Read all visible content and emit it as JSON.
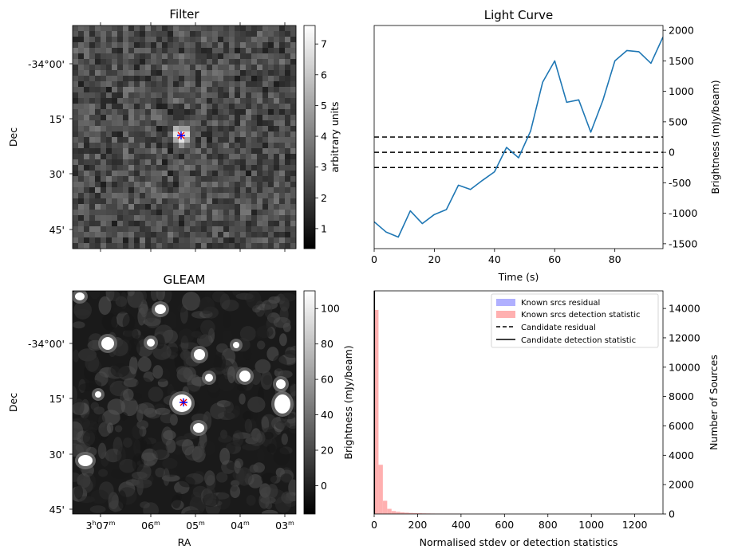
{
  "chart_data": [
    {
      "type": "heatmap",
      "title": "Filter",
      "ylabel": "Dec",
      "xlabel": "",
      "yticks": [
        "-34°00'",
        "15'",
        "30'",
        "45'"
      ],
      "colorbar": {
        "label": "arbitrary units",
        "range": [
          0.35,
          7.6
        ],
        "ticks": [
          "1",
          "2",
          "3",
          "4",
          "5",
          "6",
          "7"
        ]
      },
      "colormap": "gray",
      "markers": [
        {
          "symbol": "x",
          "color": "#ff0000"
        },
        {
          "symbol": "+",
          "color": "#0000ff"
        }
      ]
    },
    {
      "type": "line",
      "title": "Light Curve",
      "xlabel": "Time (s)",
      "ylabel": "Brightness (mJy/beam)",
      "xlim": [
        0,
        96
      ],
      "ylim": [
        -1580,
        2080
      ],
      "xticks": [
        "0",
        "20",
        "40",
        "60",
        "80"
      ],
      "yticks": [
        "-1500",
        "-1000",
        "-500",
        "0",
        "500",
        "1000",
        "1500",
        "2000"
      ],
      "series": [
        {
          "color": "#1f77b4",
          "x": [
            0,
            4,
            8,
            12,
            16,
            20,
            24,
            28,
            32,
            36,
            40,
            44,
            48,
            52,
            56,
            60,
            64,
            68,
            72,
            76,
            80,
            84,
            88,
            92,
            96
          ],
          "y": [
            -1140,
            -1310,
            -1390,
            -960,
            -1170,
            -1020,
            -940,
            -540,
            -610,
            -460,
            -320,
            80,
            -90,
            350,
            1150,
            1500,
            820,
            860,
            330,
            850,
            1500,
            1670,
            1650,
            1460,
            1890
          ]
        }
      ],
      "hlines": [
        {
          "y": 250,
          "style": "dashed",
          "color": "#000000"
        },
        {
          "y": 0,
          "style": "dashed",
          "color": "#000000"
        },
        {
          "y": -250,
          "style": "dashed",
          "color": "#000000"
        }
      ]
    },
    {
      "type": "heatmap",
      "title": "GLEAM",
      "xlabel": "RA",
      "ylabel": "Dec",
      "xticks": [
        "3h07m",
        "06m",
        "05m",
        "04m",
        "03m"
      ],
      "yticks": [
        "-34°00'",
        "15'",
        "30'",
        "45'"
      ],
      "colorbar": {
        "label": "Brightness (mJy/beam)",
        "range": [
          -16,
          110
        ],
        "ticks": [
          "0",
          "20",
          "40",
          "60",
          "80",
          "100"
        ]
      },
      "colormap": "gray",
      "markers": [
        {
          "symbol": "x",
          "color": "#ff0000"
        },
        {
          "symbol": "+",
          "color": "#0000ff"
        }
      ]
    },
    {
      "type": "bar",
      "title": "",
      "xlabel": "Normalised stdev or detection statistics",
      "ylabel": "Number of Sources",
      "xlim": [
        0,
        1330
      ],
      "ylim": [
        0,
        15200
      ],
      "xticks": [
        "0",
        "200",
        "400",
        "600",
        "800",
        "1000",
        "1200"
      ],
      "yticks": [
        "0",
        "2000",
        "4000",
        "6000",
        "8000",
        "10000",
        "12000",
        "14000"
      ],
      "bin_width": 20,
      "series": [
        {
          "name": "Known srcs detection statistic",
          "color": "#ffb0b0",
          "bin_starts": [
            0,
            20,
            40,
            60,
            80,
            100,
            120,
            140,
            160,
            180,
            200,
            220,
            240,
            260,
            280,
            300,
            320,
            340,
            360,
            380,
            400,
            420,
            440,
            460,
            480,
            500,
            520,
            540,
            560,
            580,
            600,
            620,
            640,
            660,
            680,
            700,
            720,
            740,
            760,
            780,
            800,
            820,
            840,
            860,
            880,
            900,
            920,
            940,
            960,
            980,
            1000,
            1020,
            1040,
            1060,
            1080,
            1100,
            1120,
            1140,
            1160,
            1180,
            1200,
            1220,
            1240,
            1260,
            1280,
            1300
          ],
          "counts": [
            13900,
            3350,
            900,
            350,
            200,
            150,
            110,
            90,
            70,
            60,
            50,
            40,
            35,
            30,
            25,
            25,
            20,
            20,
            18,
            15,
            15,
            12,
            12,
            10,
            10,
            10,
            8,
            8,
            8,
            8,
            6,
            6,
            5,
            5,
            5,
            5,
            5,
            4,
            5,
            4,
            4,
            4,
            3,
            3,
            3,
            3,
            3,
            3,
            3,
            3,
            2,
            2,
            2,
            2,
            2,
            2,
            2,
            2,
            2,
            2,
            2,
            2,
            2,
            3,
            2,
            2
          ]
        }
      ],
      "lines": [
        {
          "name": "Candidate residual",
          "style": "dashed",
          "color": "#000000"
        },
        {
          "name": "Candidate detection statistic",
          "style": "solid",
          "color": "#000000",
          "x": 1
        }
      ],
      "legend": {
        "position": "top-right",
        "entries": [
          {
            "label": "Known srcs residual",
            "kind": "patch",
            "color": "#b0b0ff"
          },
          {
            "label": "Known srcs detection statistic",
            "kind": "patch",
            "color": "#ffb0b0"
          },
          {
            "label": "Candidate residual",
            "kind": "dashed",
            "color": "#000000"
          },
          {
            "label": "Candidate detection statistic",
            "kind": "solid",
            "color": "#000000"
          }
        ]
      }
    }
  ]
}
